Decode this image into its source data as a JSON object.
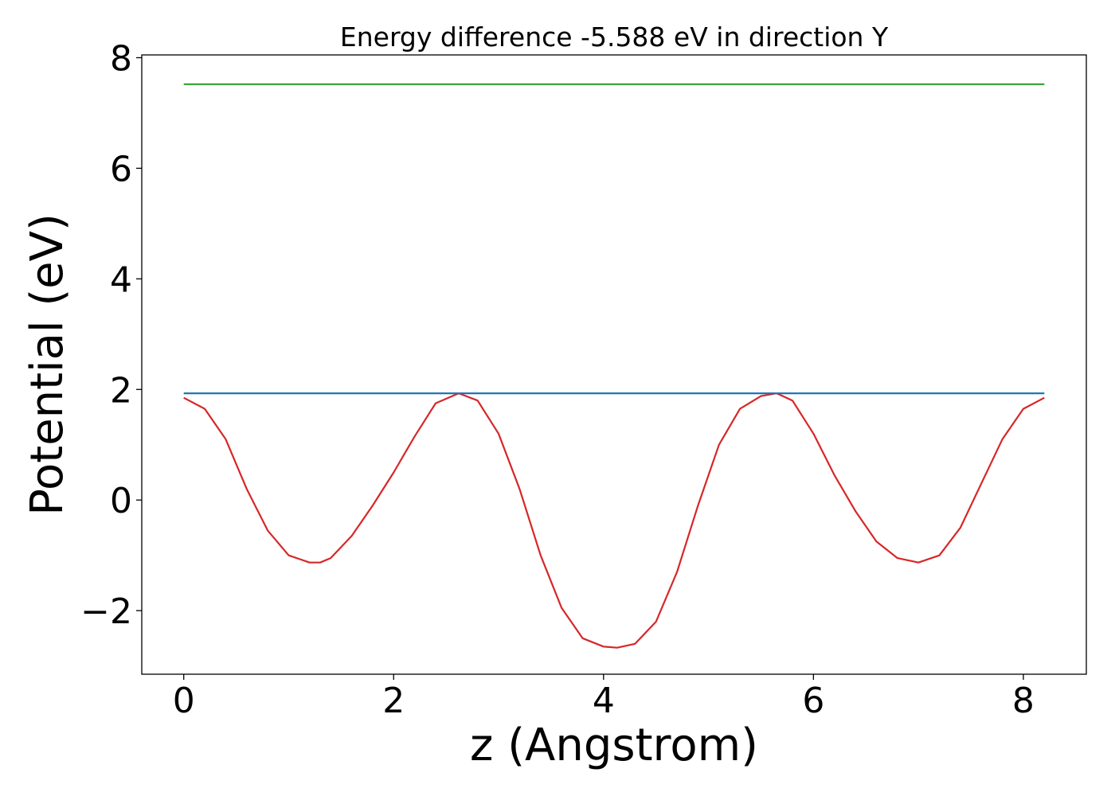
{
  "chart_data": {
    "type": "line",
    "title": "Energy difference -5.588 eV in direction Y",
    "xlabel": "z (Angstrom)",
    "ylabel": "Potential (eV)",
    "xlim": [
      -0.4,
      8.6
    ],
    "ylim": [
      -3.15,
      8.05
    ],
    "xticks": [
      0,
      2,
      4,
      6,
      8
    ],
    "xtick_labels": [
      "0",
      "2",
      "4",
      "6",
      "8"
    ],
    "yticks": [
      -2,
      0,
      2,
      4,
      6,
      8
    ],
    "ytick_labels": [
      "−2",
      "0",
      "2",
      "4",
      "6",
      "8"
    ],
    "grid": false,
    "series": [
      {
        "color": "#d62728",
        "x": [
          0.0,
          0.2,
          0.4,
          0.6,
          0.8,
          1.0,
          1.2,
          1.3,
          1.4,
          1.6,
          1.8,
          2.0,
          2.2,
          2.4,
          2.62,
          2.8,
          3.0,
          3.2,
          3.4,
          3.6,
          3.8,
          4.0,
          4.13,
          4.3,
          4.5,
          4.7,
          4.9,
          5.1,
          5.3,
          5.5,
          5.65,
          5.8,
          6.0,
          6.2,
          6.4,
          6.6,
          6.8,
          7.0,
          7.2,
          7.4,
          7.6,
          7.8,
          8.0,
          8.2
        ],
        "y": [
          1.85,
          1.65,
          1.1,
          0.2,
          -0.55,
          -1.0,
          -1.13,
          -1.13,
          -1.05,
          -0.65,
          -0.1,
          0.5,
          1.15,
          1.75,
          1.93,
          1.8,
          1.2,
          0.2,
          -1.0,
          -1.95,
          -2.5,
          -2.65,
          -2.67,
          -2.6,
          -2.2,
          -1.3,
          -0.1,
          1.0,
          1.65,
          1.88,
          1.93,
          1.8,
          1.2,
          0.45,
          -0.2,
          -0.75,
          -1.05,
          -1.13,
          -1.0,
          -0.5,
          0.3,
          1.1,
          1.65,
          1.85
        ]
      },
      {
        "color": "#1f77b4",
        "x": [
          0.0,
          8.2
        ],
        "y": [
          1.93,
          1.93
        ]
      },
      {
        "color": "#2ca02c",
        "x": [
          0.0,
          8.2
        ],
        "y": [
          7.52,
          7.52
        ]
      }
    ]
  }
}
